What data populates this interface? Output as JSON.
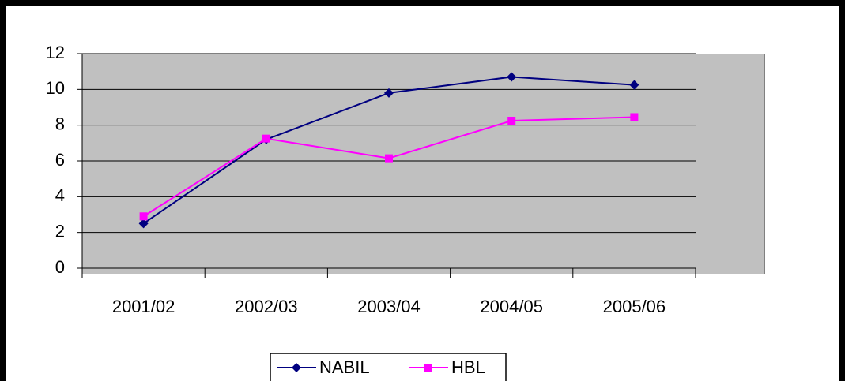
{
  "chart_data": {
    "type": "line",
    "categories": [
      "2001/02",
      "2002/03",
      "2003/04",
      "2004/05",
      "2005/06"
    ],
    "series": [
      {
        "name": "NABIL",
        "color": "#000080",
        "marker": "diamond",
        "values": [
          2.5,
          7.2,
          9.8,
          10.7,
          10.25
        ]
      },
      {
        "name": "HBL",
        "color": "#ff00ff",
        "marker": "square",
        "values": [
          2.9,
          7.25,
          6.15,
          8.25,
          8.45
        ]
      }
    ],
    "ylim": [
      0,
      12
    ],
    "yticks": [
      0,
      2,
      4,
      6,
      8,
      10,
      12
    ],
    "grid": true,
    "legend": "bottom"
  }
}
